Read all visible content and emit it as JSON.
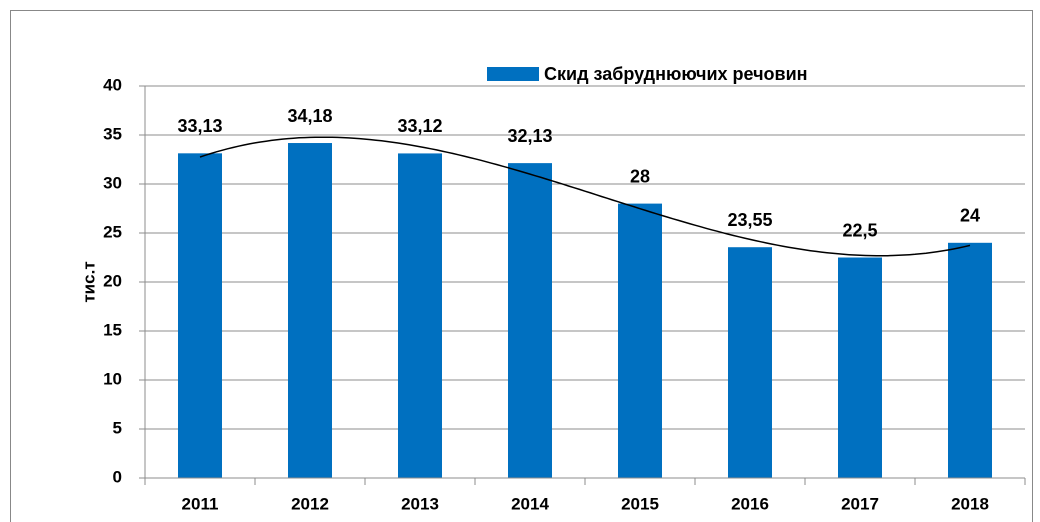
{
  "chart_data": {
    "type": "bar",
    "ylabel": "тис.т",
    "categories": [
      "2011",
      "2012",
      "2013",
      "2014",
      "2015",
      "2016",
      "2017",
      "2018"
    ],
    "series": [
      {
        "name": "Скид забруднюючих речовин",
        "color": "#0070c0",
        "values": [
          33.13,
          34.18,
          33.12,
          32.13,
          28,
          23.55,
          22.5,
          24
        ],
        "value_labels": [
          "33,13",
          "34,18",
          "33,12",
          "32,13",
          "28",
          "23,55",
          "22,5",
          "24"
        ]
      }
    ],
    "ylim": [
      0,
      40
    ],
    "yticks": [
      0,
      5,
      10,
      15,
      20,
      25,
      30,
      35,
      40
    ],
    "grid": true,
    "legend": "top",
    "trendline": "polynomial"
  }
}
